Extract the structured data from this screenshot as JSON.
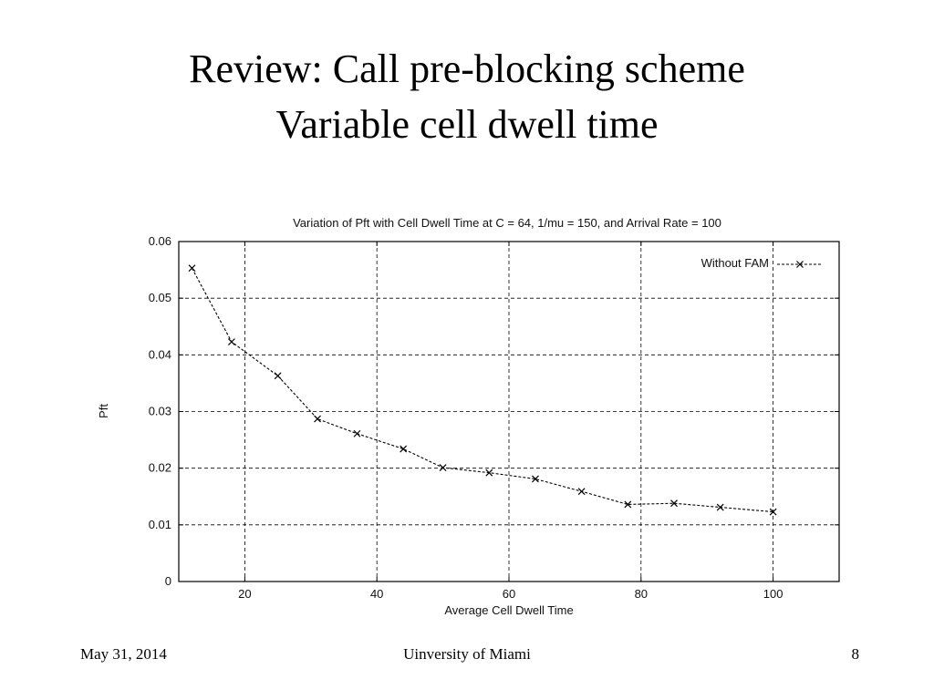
{
  "slide": {
    "title_line1": "Review: Call pre-blocking scheme",
    "title_line2": "Variable cell dwell time",
    "footer_date": "May 31, 2014",
    "footer_org": "Uinversity of Miami",
    "footer_page": "8"
  },
  "chart_data": {
    "type": "line",
    "title": "Variation of Pft with Cell Dwell Time at C = 64, 1/mu = 150, and Arrival Rate = 100",
    "xlabel": "Average Cell Dwell Time",
    "ylabel": "Pft",
    "xlim": [
      10,
      110
    ],
    "ylim": [
      0,
      0.06
    ],
    "xticks": [
      20,
      40,
      60,
      80,
      100
    ],
    "yticks": [
      0,
      0.01,
      0.02,
      0.03,
      0.04,
      0.05,
      0.06
    ],
    "ytick_labels": [
      "0",
      "0.01",
      "0.02",
      "0.03",
      "0.04",
      "0.05",
      "0.06"
    ],
    "grid": true,
    "legend_position": "top-right",
    "series": [
      {
        "name": "Without FAM",
        "marker": "x",
        "line_style": "dashed",
        "color": "#000000",
        "x": [
          12,
          18,
          25,
          31,
          37,
          44,
          50,
          57,
          64,
          71,
          78,
          85,
          92,
          100
        ],
        "y": [
          0.0553,
          0.0423,
          0.0363,
          0.0287,
          0.0261,
          0.0234,
          0.0201,
          0.0192,
          0.0181,
          0.0159,
          0.0136,
          0.0138,
          0.0131,
          0.0123
        ]
      }
    ]
  }
}
